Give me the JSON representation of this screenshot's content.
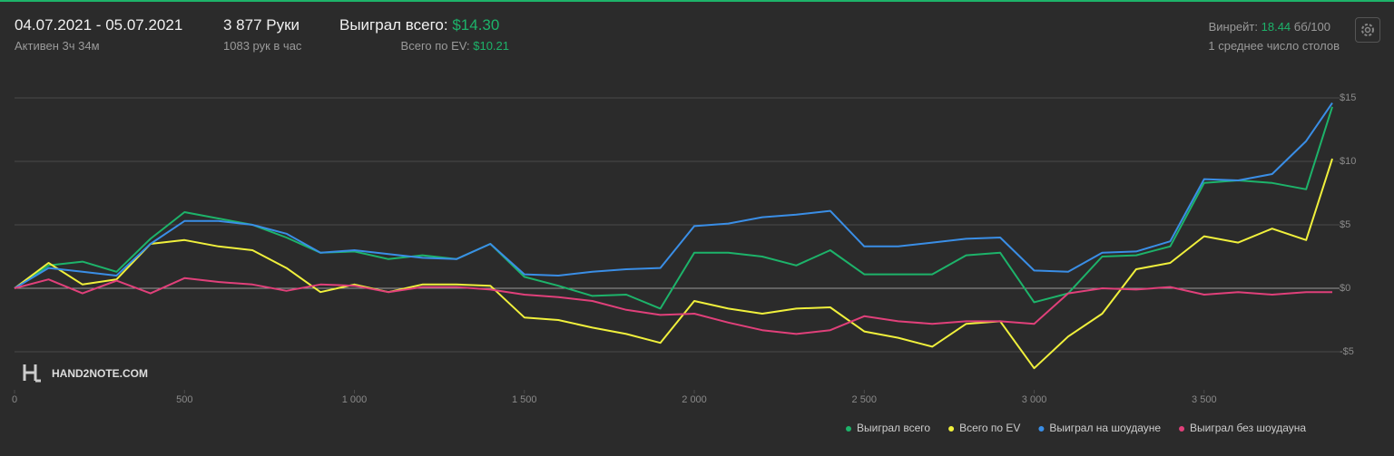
{
  "header": {
    "date_range": "04.07.2021 - 05.07.2021",
    "active": "Активен 3ч 34м",
    "hands": "3 877 Руки",
    "hands_per_hour": "1083 рук в час",
    "won_label": "Выиграл всего:",
    "won_value": "$14.30",
    "ev_label": "Всего по EV:",
    "ev_value": "$10.21",
    "winrate_label": "Винрейт:",
    "winrate_value": "18.44",
    "winrate_unit": "бб/100",
    "tables": "1 среднее число столов"
  },
  "logo": "HAND2NOTE.COM",
  "chart_data": {
    "type": "line",
    "x": [
      0,
      100,
      200,
      300,
      400,
      500,
      600,
      700,
      800,
      900,
      1000,
      1100,
      1200,
      1300,
      1400,
      1500,
      1600,
      1700,
      1800,
      1900,
      2000,
      2100,
      2200,
      2300,
      2400,
      2500,
      2600,
      2700,
      2800,
      2900,
      3000,
      3100,
      3200,
      3300,
      3400,
      3500,
      3600,
      3700,
      3800,
      3877
    ],
    "series": [
      {
        "name": "Выиграл всего",
        "color": "#1db36a",
        "values": [
          0,
          1.8,
          2.1,
          1.3,
          3.9,
          6.0,
          5.5,
          5.0,
          4.0,
          2.8,
          2.9,
          2.3,
          2.6,
          2.3,
          3.5,
          0.9,
          0.2,
          -0.6,
          -0.5,
          -1.6,
          2.8,
          2.8,
          2.5,
          1.8,
          3.0,
          1.1,
          1.1,
          1.1,
          2.6,
          2.8,
          -1.1,
          -0.4,
          2.5,
          2.6,
          3.3,
          8.3,
          8.5,
          8.3,
          7.8,
          14.3
        ]
      },
      {
        "name": "Всего по EV",
        "color": "#f0f03c",
        "values": [
          0,
          2.0,
          0.3,
          0.7,
          3.5,
          3.8,
          3.3,
          3.0,
          1.6,
          -0.3,
          0.3,
          -0.3,
          0.3,
          0.3,
          0.2,
          -2.3,
          -2.5,
          -3.1,
          -3.6,
          -4.3,
          -1.0,
          -1.6,
          -2.0,
          -1.6,
          -1.5,
          -3.4,
          -3.9,
          -4.6,
          -2.8,
          -2.6,
          -6.3,
          -3.8,
          -2.0,
          1.5,
          2.0,
          4.1,
          3.6,
          4.7,
          3.8,
          10.21
        ]
      },
      {
        "name": "Выиграл на шоудауне",
        "color": "#3a8ee6",
        "values": [
          0,
          1.6,
          1.3,
          1.0,
          3.5,
          5.3,
          5.3,
          5.0,
          4.3,
          2.8,
          3.0,
          2.7,
          2.4,
          2.3,
          3.5,
          1.1,
          1.0,
          1.3,
          1.5,
          1.6,
          4.9,
          5.1,
          5.6,
          5.8,
          6.1,
          3.3,
          3.3,
          3.6,
          3.9,
          4.0,
          1.4,
          1.3,
          2.8,
          2.9,
          3.7,
          8.6,
          8.5,
          9.0,
          11.6,
          14.6
        ]
      },
      {
        "name": "Выиграл без шоудауна",
        "color": "#e0407a",
        "values": [
          0,
          0.7,
          -0.4,
          0.6,
          -0.4,
          0.8,
          0.5,
          0.3,
          -0.2,
          0.3,
          0.2,
          -0.3,
          0.1,
          0.1,
          -0.1,
          -0.5,
          -0.7,
          -1.0,
          -1.7,
          -2.1,
          -2.0,
          -2.7,
          -3.3,
          -3.6,
          -3.3,
          -2.2,
          -2.6,
          -2.8,
          -2.6,
          -2.6,
          -2.8,
          -0.4,
          0.0,
          -0.1,
          0.1,
          -0.5,
          -0.3,
          -0.5,
          -0.3,
          -0.3
        ]
      }
    ],
    "xlim": [
      0,
      3877
    ],
    "ylim": [
      -8,
      16.5
    ],
    "xticks": [
      0,
      500,
      {
        "value": 1000,
        "label": "1 000"
      },
      {
        "value": 1500,
        "label": "1 500"
      },
      {
        "value": 2000,
        "label": "2 000"
      },
      {
        "value": 2500,
        "label": "2 500"
      },
      {
        "value": 3000,
        "label": "3 000"
      },
      {
        "value": 3500,
        "label": "3 500"
      }
    ],
    "yticks": [
      {
        "value": -5,
        "label": "-$5"
      },
      {
        "value": 0,
        "label": "$0"
      },
      {
        "value": 5,
        "label": "$5"
      },
      {
        "value": 10,
        "label": "$10"
      },
      {
        "value": 15,
        "label": "$15"
      }
    ],
    "grid": true
  }
}
